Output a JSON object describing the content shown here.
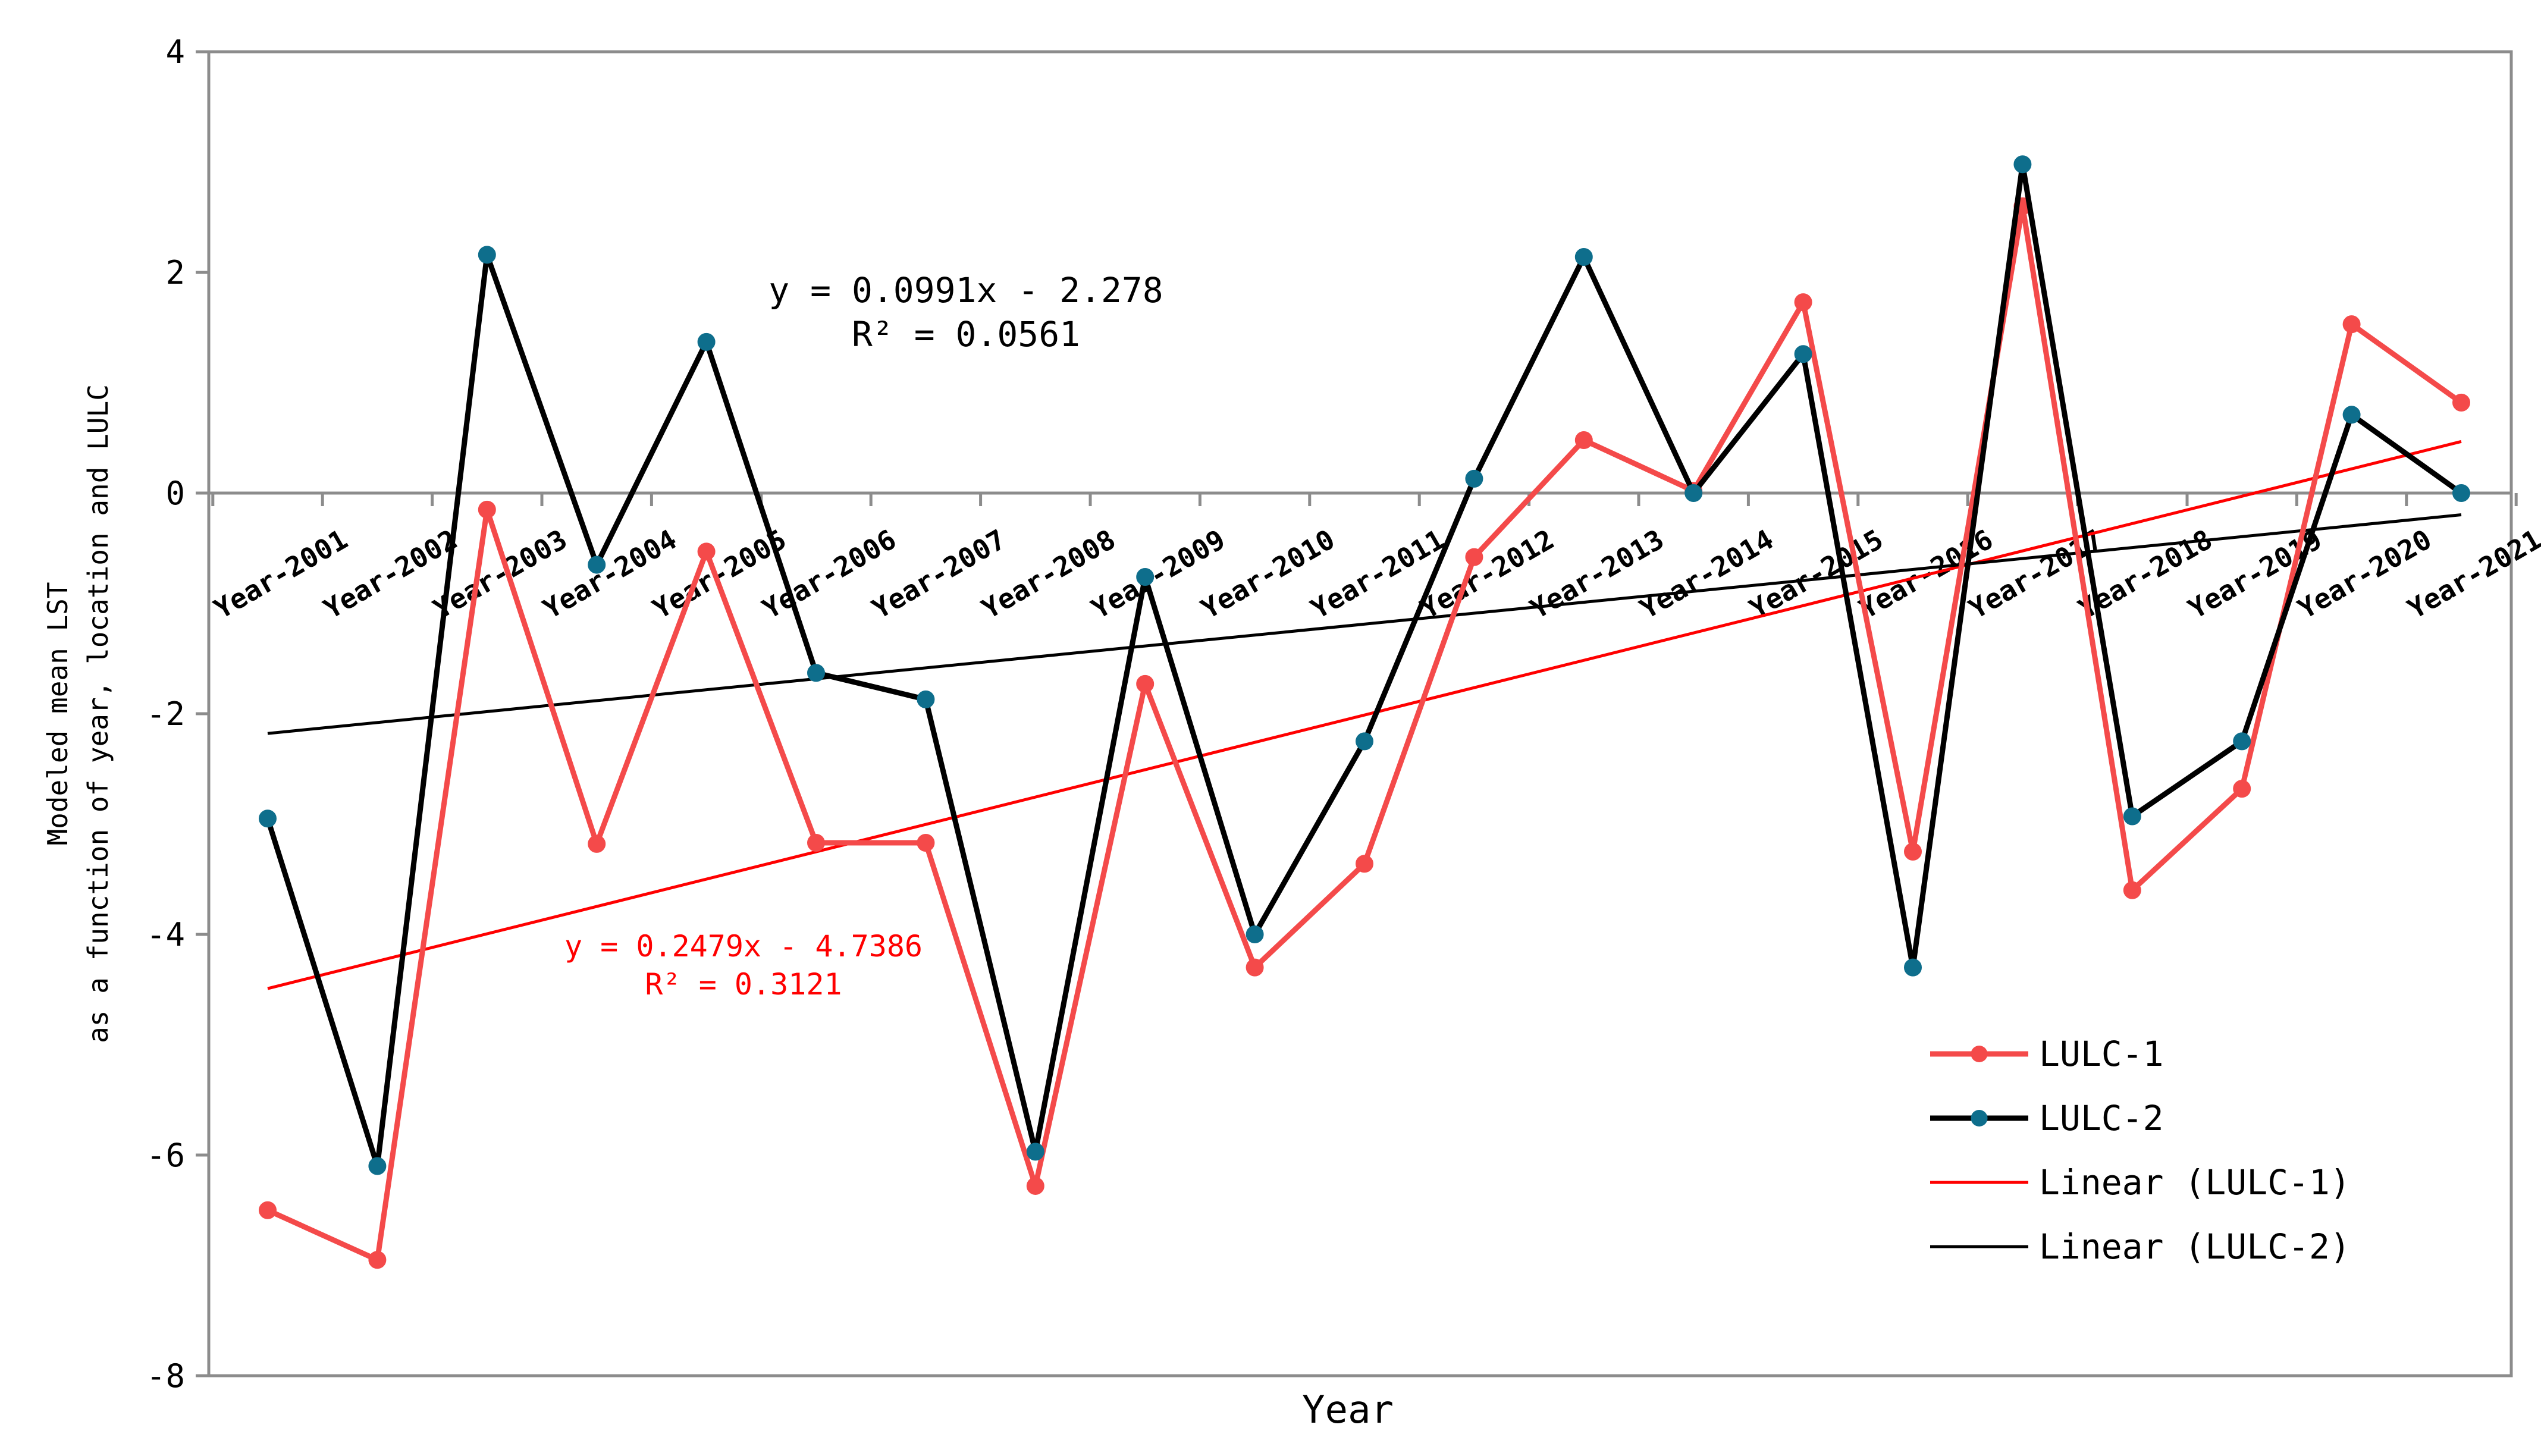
{
  "chart_data": {
    "type": "line",
    "title": "",
    "xlabel": "Year",
    "ylabel_line1": "Modeled mean LST",
    "ylabel_line2": "as a function of year, location and LULC",
    "ylim": [
      -8,
      4
    ],
    "yticks": [
      -8,
      -6,
      -4,
      -2,
      0,
      2,
      4
    ],
    "grid": false,
    "legend_position": "bottom-right",
    "categories": [
      "Year-2001",
      "Year-2002",
      "Year-2003",
      "Year-2004",
      "Year-2005",
      "Year-2006",
      "Year-2007",
      "Year-2008",
      "Year-2009",
      "Year-2010",
      "Year-2011",
      "Year-2012",
      "Year-2013",
      "Year-2014",
      "Year-2015",
      "Year-2016",
      "Year-2017",
      "Year-2018",
      "Year-2019",
      "Year-2020",
      "Year-2021"
    ],
    "series": [
      {
        "name": "LULC-1",
        "color": "#f44a4a",
        "marker_color": "#f44a4a",
        "values": [
          -6.5,
          -6.95,
          -0.15,
          -3.18,
          -0.53,
          -3.17,
          -3.17,
          -6.28,
          -1.73,
          -4.3,
          -3.36,
          -0.58,
          0.48,
          0.02,
          1.73,
          -3.25,
          2.6,
          -3.6,
          -2.68,
          1.53,
          0.82
        ]
      },
      {
        "name": "LULC-2",
        "color": "#000000",
        "marker_color": "#0e6e8c",
        "values": [
          -2.95,
          -6.1,
          2.16,
          -0.65,
          1.37,
          -1.63,
          -1.87,
          -5.97,
          -0.76,
          -4.0,
          -2.25,
          0.13,
          2.14,
          0.0,
          1.26,
          -4.3,
          2.98,
          -2.93,
          -2.25,
          0.71,
          0.0
        ]
      }
    ],
    "trendlines": [
      {
        "name": "Linear (LULC-1)",
        "color": "#ff0000",
        "slope": 0.2479,
        "intercept": -4.7386,
        "equation": "y = 0.2479x - 4.7386",
        "r_squared": "R² = 0.3121"
      },
      {
        "name": "Linear (LULC-2)",
        "color": "#000000",
        "slope": 0.0991,
        "intercept": -2.278,
        "equation": "y = 0.0991x - 2.278",
        "r_squared": "R² = 0.0561"
      }
    ],
    "legend": [
      "LULC-1",
      "LULC-2",
      "Linear (LULC-1)",
      "Linear (LULC-2)"
    ]
  }
}
